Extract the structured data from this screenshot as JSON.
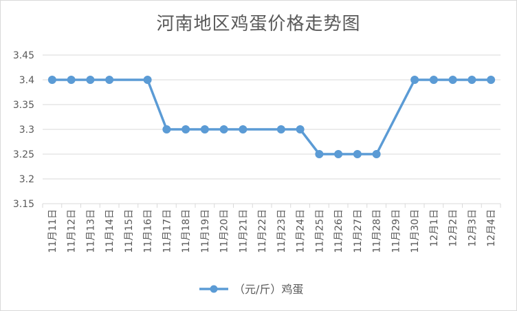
{
  "chart_data": {
    "type": "line",
    "title": "河南地区鸡蛋价格走势图",
    "categories": [
      "11月11日",
      "11月12日",
      "11月13日",
      "11月14日",
      "11月15日",
      "11月16日",
      "11月17日",
      "11月18日",
      "11月19日",
      "11月20日",
      "11月21日",
      "11月22日",
      "11月23日",
      "11月24日",
      "11月25日",
      "11月26日",
      "11月27日",
      "11月28日",
      "11月29日",
      "11月30日",
      "12月1日",
      "12月2日",
      "12月3日",
      "12月4日"
    ],
    "series": [
      {
        "name": "（元/斤）鸡蛋",
        "values": [
          3.4,
          3.4,
          3.4,
          3.4,
          null,
          3.4,
          3.3,
          3.3,
          3.3,
          3.3,
          3.3,
          null,
          3.3,
          3.3,
          3.25,
          3.25,
          3.25,
          3.25,
          null,
          3.4,
          3.4,
          3.4,
          3.4,
          3.4
        ],
        "color": "#5b9bd5"
      }
    ],
    "yticks": [
      "3.15",
      "3.2",
      "3.25",
      "3.3",
      "3.35",
      "3.4",
      "3.45"
    ],
    "ylim": [
      3.15,
      3.45
    ],
    "grid": true,
    "legend": "bottom",
    "xlabel": "",
    "ylabel": ""
  }
}
